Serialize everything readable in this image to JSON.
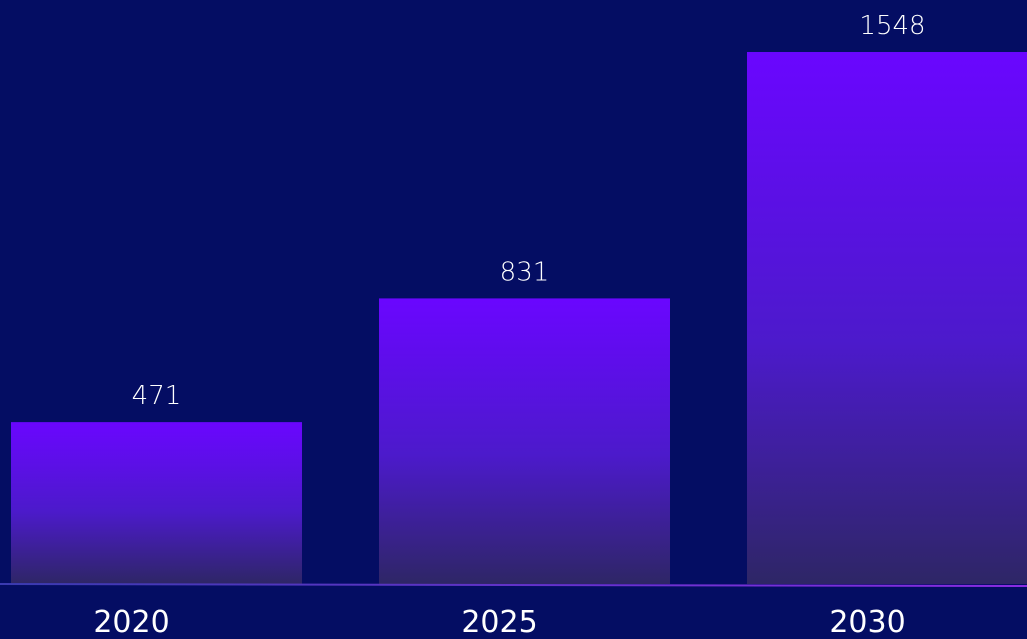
{
  "chart_data": {
    "type": "bar",
    "categories": [
      "2020",
      "2025",
      "2030"
    ],
    "values": [
      471,
      831,
      1548
    ],
    "value_labels": [
      "471",
      "831",
      "1548"
    ],
    "title": "",
    "xlabel": "",
    "ylabel": "",
    "ylim": [
      0,
      1580
    ],
    "grid": false,
    "legend": "none",
    "colors": {
      "background": "#040d63",
      "bar_top": "#6a06ff",
      "bar_bottom": "#2e2666",
      "baseline": "#8a2be2",
      "text": "#ffffff"
    }
  }
}
